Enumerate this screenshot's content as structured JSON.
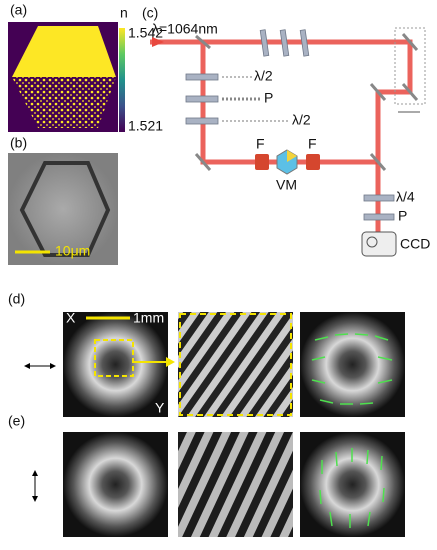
{
  "panels": {
    "a": {
      "label": "(a)",
      "colorbar_title": "n",
      "colorbar_max": "1.542",
      "colorbar_min": "1.521"
    },
    "b": {
      "label": "(b)",
      "scale_bar": "10μm"
    },
    "c": {
      "label": "(c)",
      "wavelength": "λ=1064nm",
      "components": [
        "λ/2",
        "P",
        "λ/2",
        "F",
        "VM",
        "F",
        "λ/4",
        "P",
        "CCD"
      ]
    },
    "d": {
      "label": "(d)",
      "scale_bar": "1mm",
      "x_label": "X",
      "y_label": "Y"
    },
    "e": {
      "label": "(e)"
    }
  }
}
